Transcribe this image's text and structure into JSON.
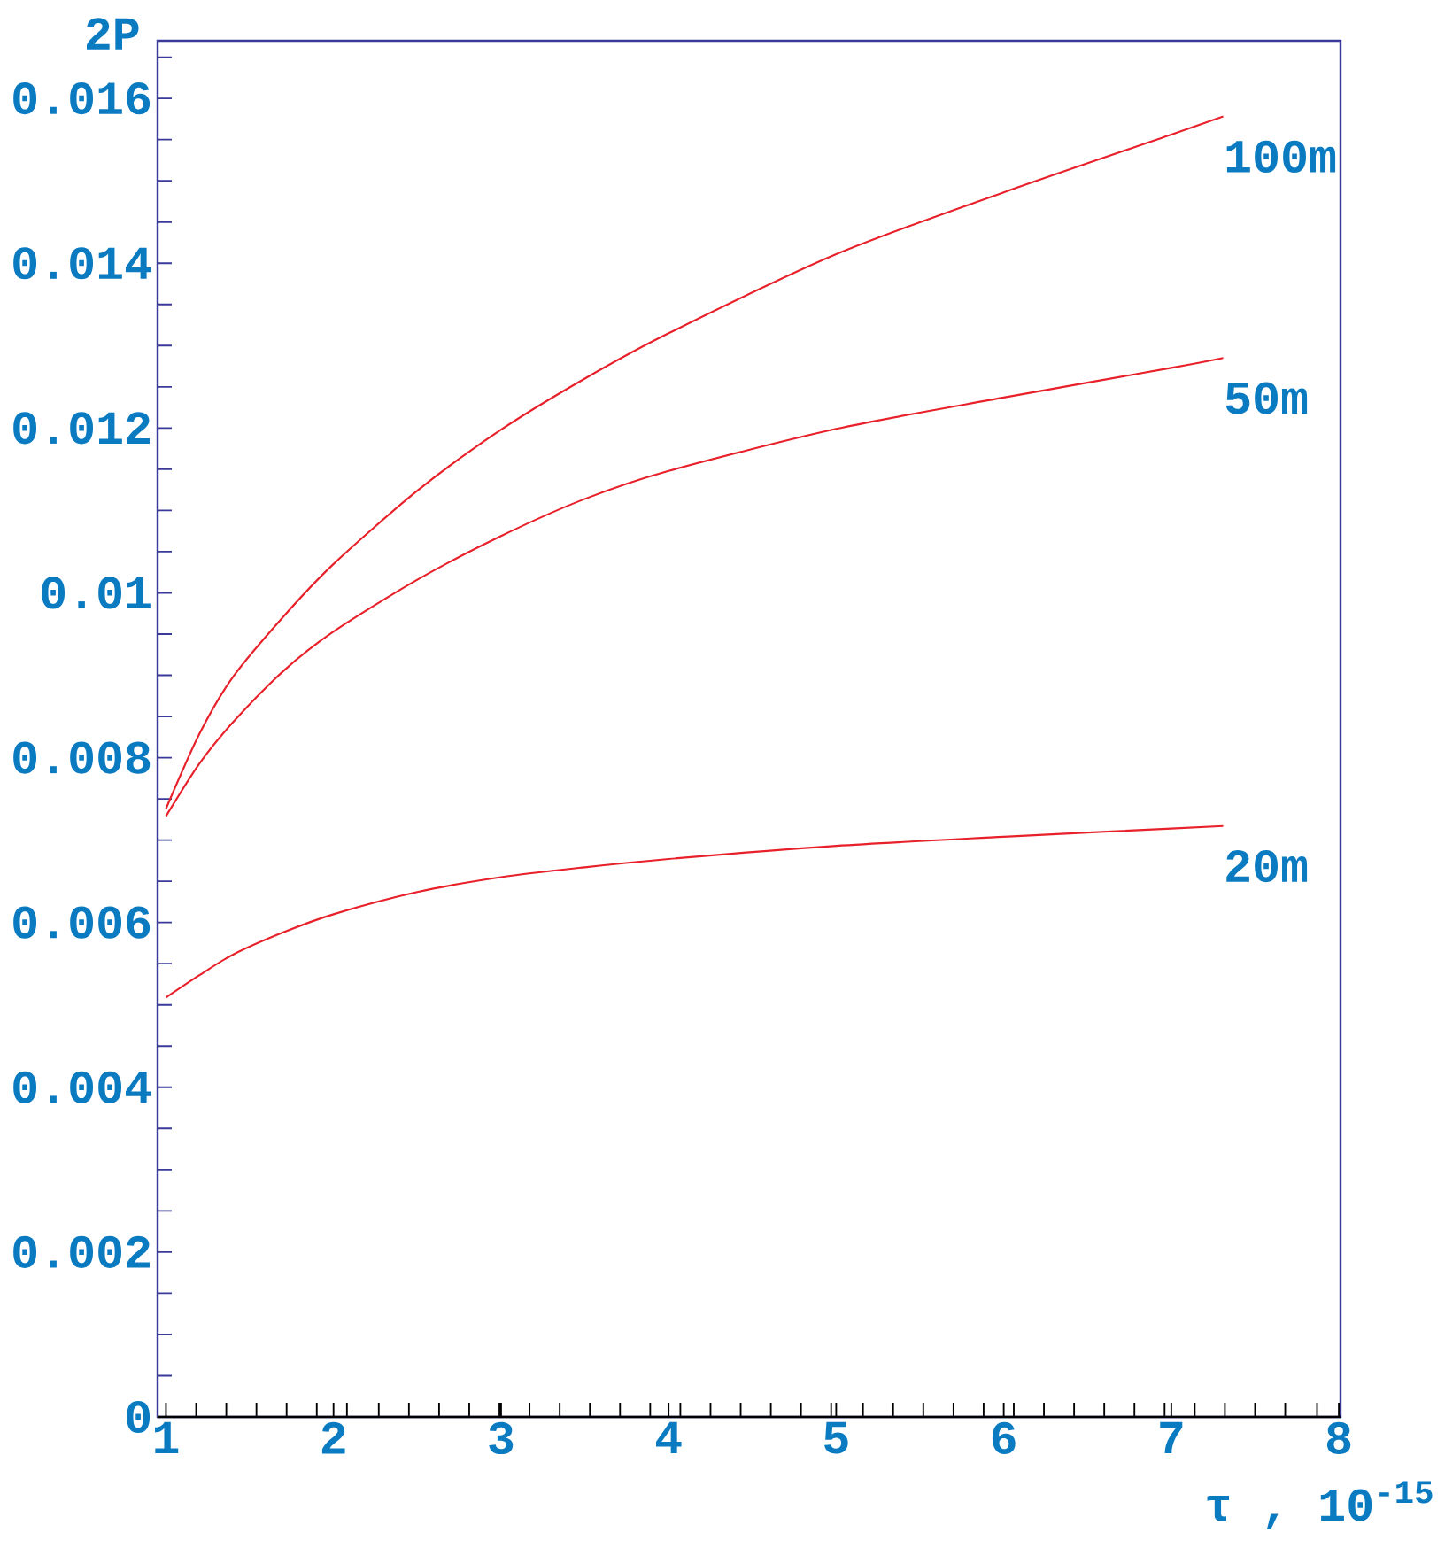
{
  "chart_data": {
    "type": "line",
    "xlabel": "τ , 10$^{-15}$",
    "ylabel": "2P",
    "x": [
      1,
      1.2,
      1.4,
      1.7,
      2,
      2.5,
      3,
      3.5,
      4,
      5,
      6,
      7,
      7.31
    ],
    "series": [
      {
        "name": "100m",
        "color": "#e8202a",
        "values": [
          0.00738,
          0.00829,
          0.00898,
          0.00971,
          0.01035,
          0.01124,
          0.01198,
          0.0126,
          0.01315,
          0.01411,
          0.01486,
          0.01556,
          0.01578
        ]
      },
      {
        "name": "50m",
        "color": "#e8202a",
        "values": [
          0.00729,
          0.00793,
          0.00843,
          0.00905,
          0.00953,
          0.01016,
          0.01069,
          0.01114,
          0.01148,
          0.01199,
          0.01237,
          0.01273,
          0.01285
        ]
      },
      {
        "name": "20m",
        "color": "#e8202a",
        "values": [
          0.00509,
          0.00536,
          0.00561,
          0.00588,
          0.0061,
          0.00637,
          0.00655,
          0.00667,
          0.00677,
          0.00693,
          0.00704,
          0.00714,
          0.00717
        ]
      }
    ],
    "xlim": [
      0.95,
      8.01
    ],
    "ylim": [
      0,
      0.0167
    ],
    "xticks": [
      1,
      {
        "value": 1.18,
        "label": null
      },
      {
        "value": 1.36,
        "label": null
      },
      {
        "value": 1.54,
        "label": null
      },
      {
        "value": 1.72,
        "label": null
      },
      {
        "value": 1.9,
        "label": null
      },
      2,
      {
        "value": 2.08,
        "label": null
      },
      {
        "value": 2.27,
        "label": null
      },
      {
        "value": 2.45,
        "label": null
      },
      {
        "value": 2.63,
        "label": null
      },
      {
        "value": 2.81,
        "label": null
      },
      {
        "value": 2.99,
        "label": null
      },
      3,
      {
        "value": 3.17,
        "label": null
      },
      {
        "value": 3.35,
        "label": null
      },
      {
        "value": 3.53,
        "label": null
      },
      {
        "value": 3.71,
        "label": null
      },
      {
        "value": 3.89,
        "label": null
      },
      4,
      {
        "value": 4.07,
        "label": null
      },
      {
        "value": 4.25,
        "label": null
      },
      {
        "value": 4.43,
        "label": null
      },
      {
        "value": 4.61,
        "label": null
      },
      {
        "value": 4.79,
        "label": null
      },
      {
        "value": 4.97,
        "label": null
      },
      5,
      {
        "value": 5.16,
        "label": null
      },
      {
        "value": 5.34,
        "label": null
      },
      {
        "value": 5.52,
        "label": null
      },
      {
        "value": 5.7,
        "label": null
      },
      {
        "value": 5.88,
        "label": null
      },
      6,
      {
        "value": 6.06,
        "label": null
      },
      {
        "value": 6.24,
        "label": null
      },
      {
        "value": 6.42,
        "label": null
      },
      {
        "value": 6.6,
        "label": null
      },
      {
        "value": 6.78,
        "label": null
      },
      {
        "value": 6.96,
        "label": null
      },
      7,
      {
        "value": 7.14,
        "label": null
      },
      {
        "value": 7.32,
        "label": null
      },
      {
        "value": 7.5,
        "label": null
      },
      {
        "value": 7.68,
        "label": null
      },
      {
        "value": 7.87,
        "label": null
      },
      8
    ],
    "yticks": [
      0,
      {
        "value": 0.0005,
        "label": null
      },
      {
        "value": 0.001,
        "label": null
      },
      {
        "value": 0.0015,
        "label": null
      },
      0.002,
      {
        "value": 0.0025,
        "label": null
      },
      {
        "value": 0.003,
        "label": null
      },
      {
        "value": 0.0035,
        "label": null
      },
      0.004,
      {
        "value": 0.0045,
        "label": null
      },
      {
        "value": 0.005,
        "label": null
      },
      {
        "value": 0.0055,
        "label": null
      },
      0.006,
      {
        "value": 0.0065,
        "label": null
      },
      {
        "value": 0.007,
        "label": null
      },
      {
        "value": 0.0075,
        "label": null
      },
      0.008,
      {
        "value": 0.0085,
        "label": null
      },
      {
        "value": 0.009,
        "label": null
      },
      {
        "value": 0.0095,
        "label": null
      },
      0.01,
      {
        "value": 0.0105,
        "label": null
      },
      {
        "value": 0.011,
        "label": null
      },
      {
        "value": 0.0115,
        "label": null
      },
      0.012,
      {
        "value": 0.0125,
        "label": null
      },
      {
        "value": 0.013,
        "label": null
      },
      {
        "value": 0.0135,
        "label": null
      },
      0.014,
      {
        "value": 0.0145,
        "label": null
      },
      {
        "value": 0.015,
        "label": null
      },
      {
        "value": 0.0155,
        "label": null
      },
      0.016,
      {
        "value": 0.0165,
        "label": null
      }
    ]
  }
}
